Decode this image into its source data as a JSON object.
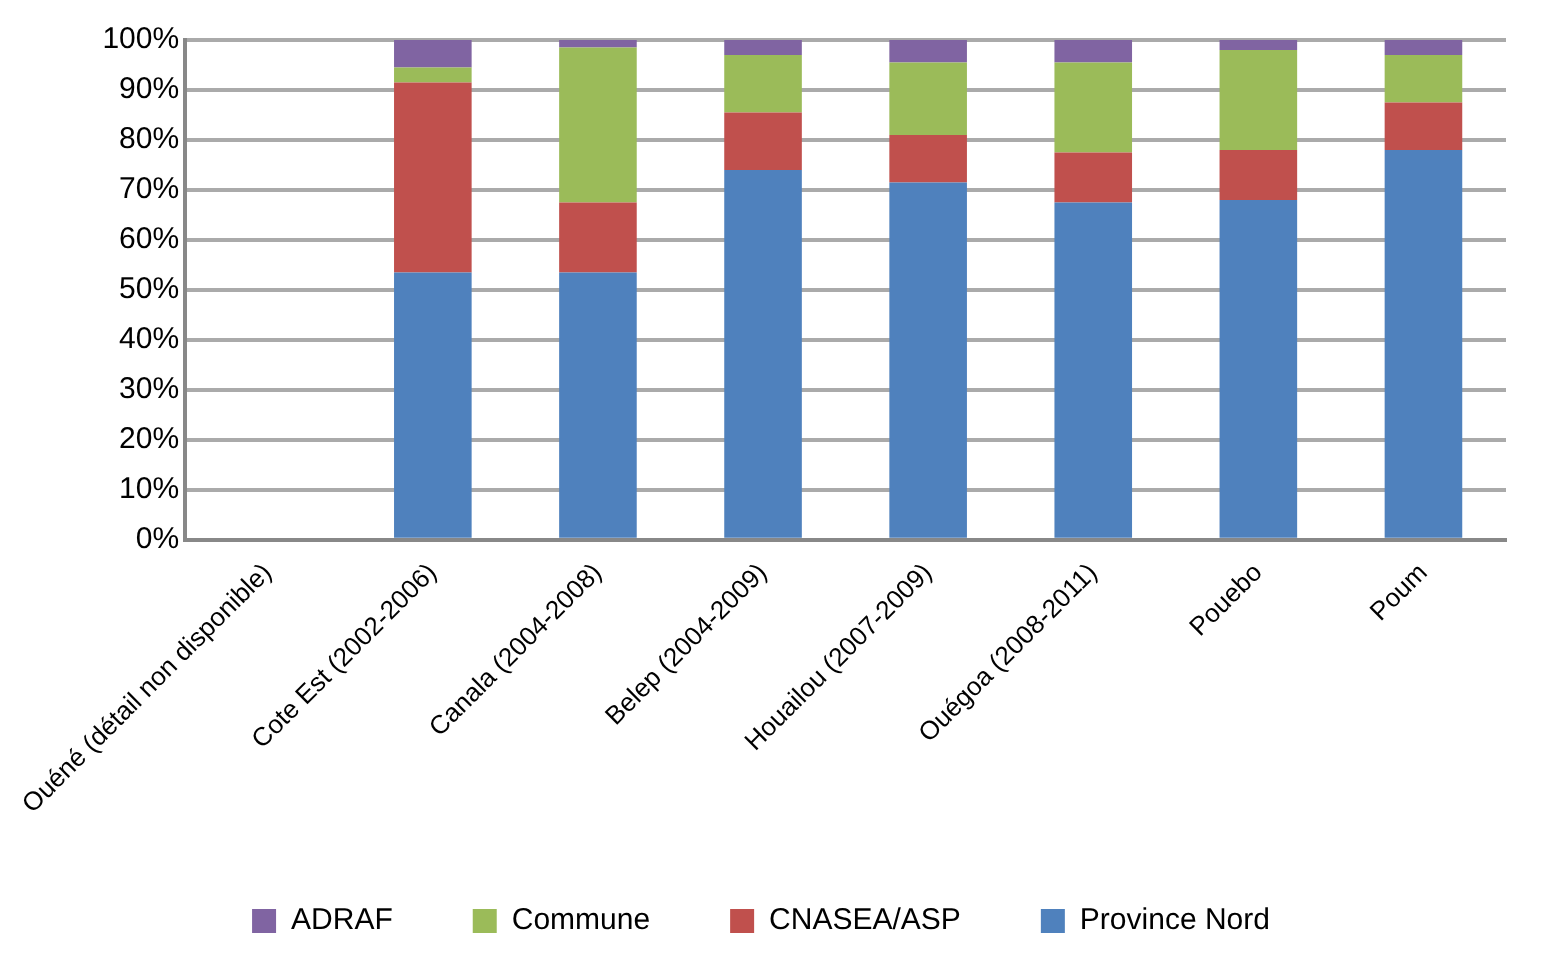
{
  "chart_data": {
    "type": "bar",
    "stacked": true,
    "categories": [
      "Ouéné (détail non disponible)",
      "Cote Est (2002-2006)",
      "Canala (2004-2008)",
      "Belep (2004-2009)",
      "Houailou (2007-2009)",
      "Ouégoa (2008-2011)",
      "Pouebo",
      "Poum"
    ],
    "series": [
      {
        "name": "Province Nord",
        "color": "#4f81bd",
        "values": [
          null,
          53.5,
          53.5,
          74,
          71.5,
          67.5,
          68,
          78
        ]
      },
      {
        "name": "CNASEA/ASP",
        "color": "#c0504d",
        "values": [
          null,
          38,
          14,
          11.5,
          9.5,
          10,
          10,
          9.5
        ]
      },
      {
        "name": "Commune",
        "color": "#9bbb59",
        "values": [
          null,
          3,
          31,
          11.5,
          14.5,
          18,
          20,
          9.5
        ]
      },
      {
        "name": "ADRAF",
        "color": "#8064a2",
        "values": [
          null,
          5.5,
          1.5,
          3,
          4.5,
          4.5,
          2,
          3
        ]
      }
    ],
    "ylim": [
      0,
      100
    ],
    "yticks": [
      {
        "value": 0,
        "label": "0%"
      },
      {
        "value": 10,
        "label": "10%"
      },
      {
        "value": 20,
        "label": "20%"
      },
      {
        "value": 30,
        "label": "30%"
      },
      {
        "value": 40,
        "label": "40%"
      },
      {
        "value": 50,
        "label": "50%"
      },
      {
        "value": 60,
        "label": "60%"
      },
      {
        "value": 70,
        "label": "70%"
      },
      {
        "value": 80,
        "label": "80%"
      },
      {
        "value": 90,
        "label": "90%"
      },
      {
        "value": 100,
        "label": "100%"
      }
    ],
    "grid": "y",
    "legend": "bottom"
  }
}
